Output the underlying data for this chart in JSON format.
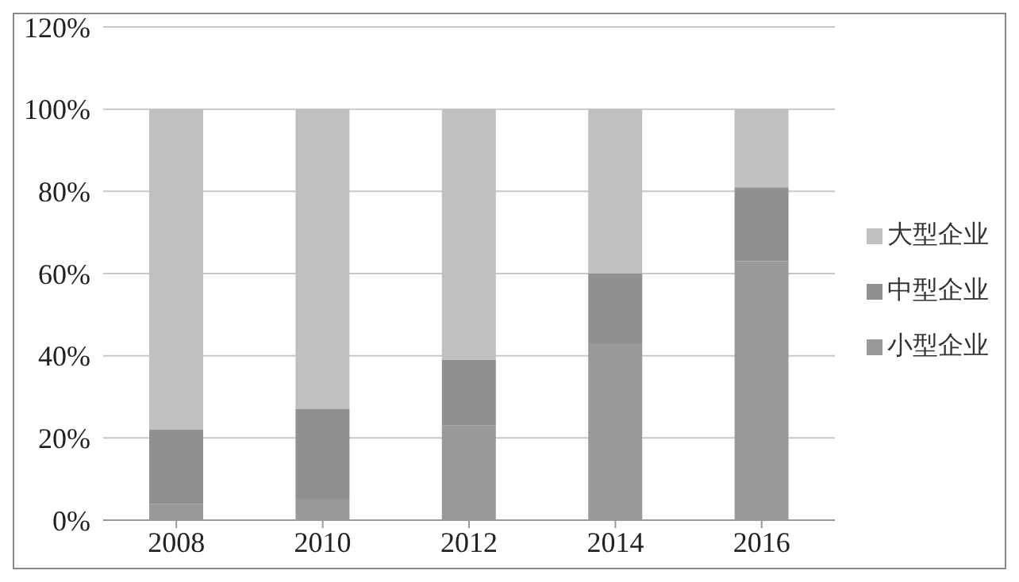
{
  "chart_data": {
    "type": "bar",
    "stacked": true,
    "categories": [
      "2008",
      "2010",
      "2012",
      "2014",
      "2016"
    ],
    "series": [
      {
        "name": "小型企业",
        "color": "#999999",
        "values": [
          4,
          5,
          23,
          43,
          63
        ]
      },
      {
        "name": "中型企业",
        "color": "#909090",
        "values": [
          18,
          22,
          16,
          17,
          18
        ]
      },
      {
        "name": "大型企业",
        "color": "#c0c0c0",
        "values": [
          78,
          73,
          61,
          40,
          19
        ]
      }
    ],
    "ylim": [
      0,
      120
    ],
    "yticks": [
      {
        "value": 0,
        "label": "0%"
      },
      {
        "value": 20,
        "label": "20%"
      },
      {
        "value": 40,
        "label": "40%"
      },
      {
        "value": 60,
        "label": "60%"
      },
      {
        "value": 80,
        "label": "80%"
      },
      {
        "value": 100,
        "label": "100%"
      },
      {
        "value": 120,
        "label": "120%"
      }
    ],
    "grid": "y",
    "legend": "right"
  }
}
